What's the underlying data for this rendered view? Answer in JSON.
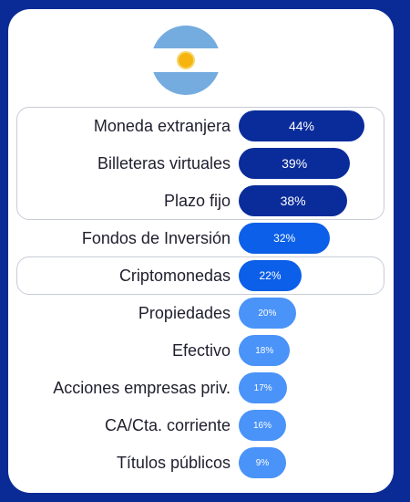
{
  "colors": {
    "background": "#0a2a96",
    "tier1": "#0a2c9a",
    "tier2": "#0b5fe8",
    "tier3": "#4a93f8"
  },
  "flag_icon": "argentina-flag-icon",
  "chart_data": {
    "type": "bar",
    "orientation": "horizontal",
    "categories": [
      "Moneda extranjera",
      "Billeteras virtuales",
      "Plazo fijo",
      "Fondos de Inversión",
      "Criptomonedas",
      "Propiedades",
      "Efectivo",
      "Acciones empresas priv.",
      "CA/Cta. corriente",
      "Títulos públicos"
    ],
    "values": [
      44,
      39,
      38,
      32,
      22,
      20,
      18,
      17,
      16,
      9
    ],
    "value_labels": [
      "44%",
      "39%",
      "38%",
      "32%",
      "22%",
      "20%",
      "18%",
      "17%",
      "16%",
      "9%"
    ],
    "tiers": [
      1,
      1,
      1,
      2,
      2,
      3,
      3,
      3,
      3,
      3
    ],
    "highlighted_groups": [
      [
        0,
        2
      ],
      [
        4,
        4
      ]
    ]
  }
}
